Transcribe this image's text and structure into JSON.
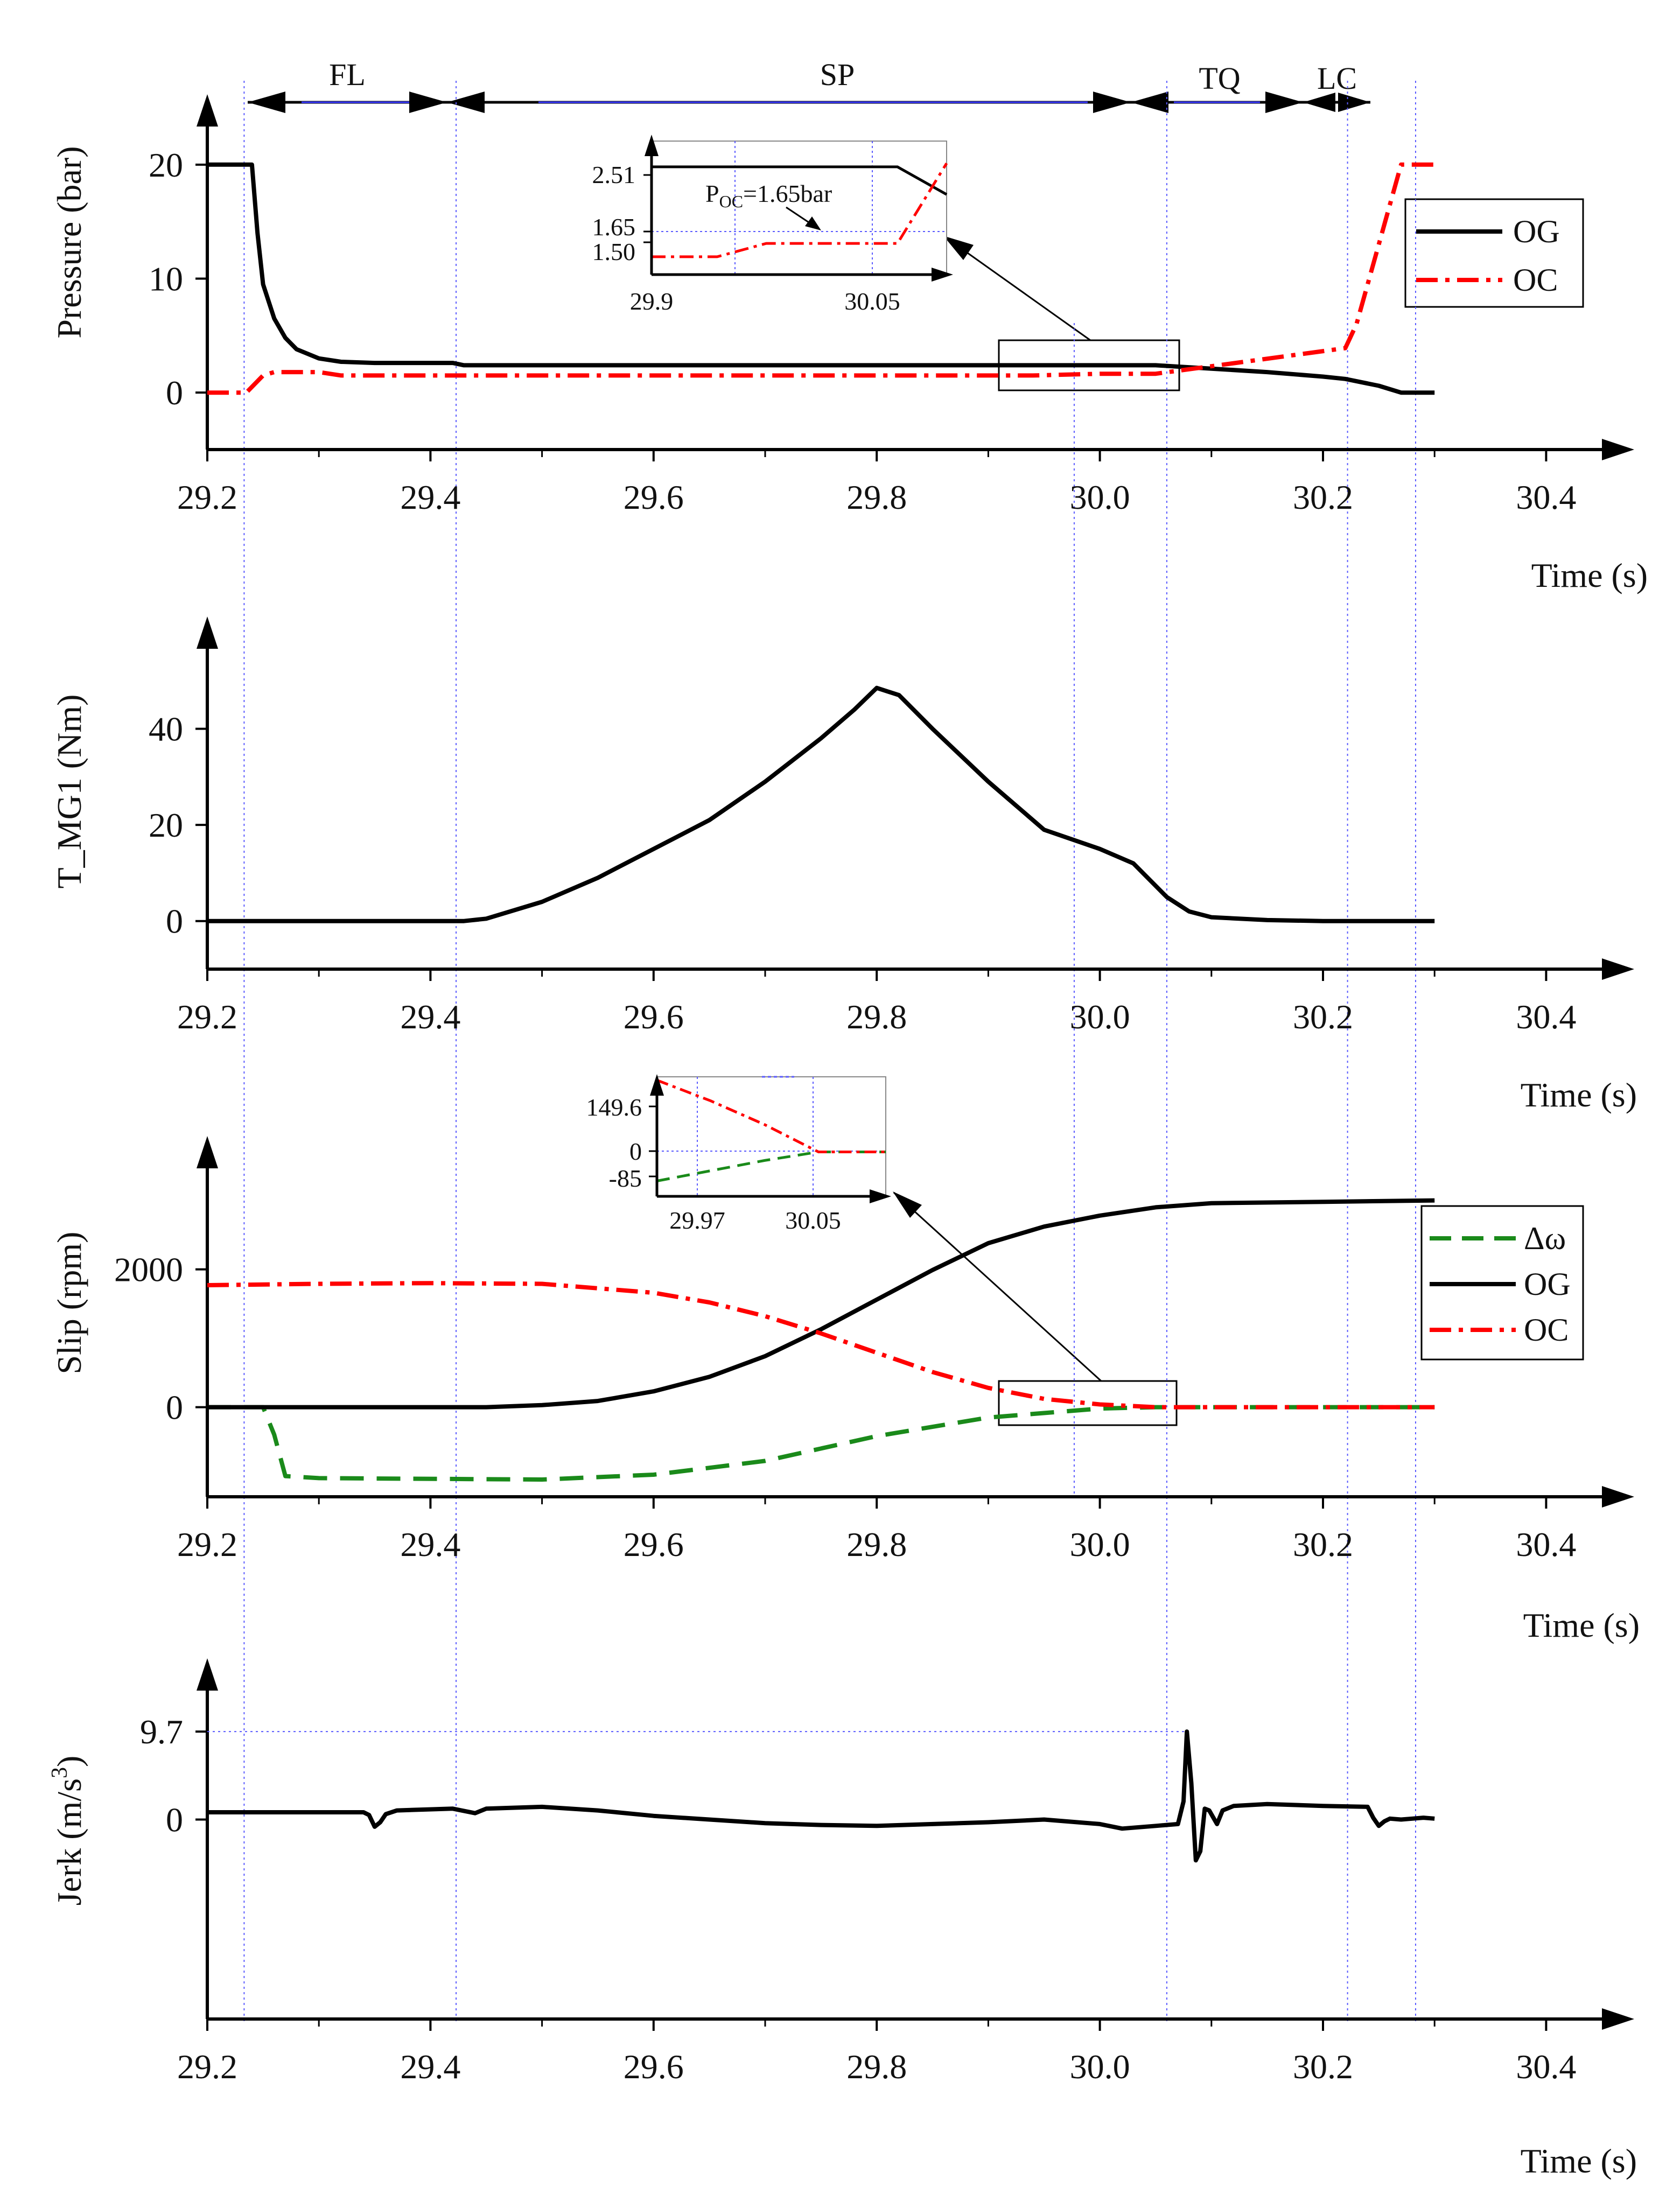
{
  "figure": {
    "background": "#ffffff"
  },
  "colors": {
    "og": "#000000",
    "oc": "#ff0000",
    "dw": "#1a8a1a",
    "guide": "#5a5aff",
    "axis": "#000000"
  },
  "chart_data": [
    {
      "id": "pressure",
      "type": "line",
      "ylabel": "Pressure (bar)",
      "xlabel": "Time (s)",
      "xlim": [
        29.2,
        30.45
      ],
      "ylim": [
        -5,
        25
      ],
      "xticks": [
        29.2,
        29.4,
        29.6,
        29.8,
        30.0,
        30.2,
        30.4
      ],
      "xtick_labels": [
        "29.2",
        "29.4",
        "29.6",
        "29.8",
        "30.0",
        "30.2",
        "30.4"
      ],
      "yticks": [
        0,
        10,
        20
      ],
      "ytick_labels": [
        "0",
        "10",
        "20"
      ],
      "legend": "right",
      "series": [
        {
          "name": "OG",
          "style": "solid",
          "color": "#000000",
          "x": [
            29.2,
            29.24,
            29.245,
            29.25,
            29.26,
            29.27,
            29.28,
            29.3,
            29.32,
            29.35,
            29.42,
            29.43,
            29.8,
            30.05,
            30.1,
            30.15,
            30.2,
            30.22,
            30.25,
            30.27,
            30.3
          ],
          "y": [
            20,
            20,
            14,
            9.5,
            6.5,
            4.8,
            3.8,
            3.0,
            2.7,
            2.6,
            2.6,
            2.4,
            2.4,
            2.4,
            2.1,
            1.8,
            1.4,
            1.2,
            0.6,
            0.0,
            0.0
          ]
        },
        {
          "name": "OC",
          "style": "dashdot",
          "color": "#ff0000",
          "x": [
            29.2,
            29.235,
            29.25,
            29.26,
            29.3,
            29.32,
            29.9,
            29.94,
            30.0,
            30.05,
            30.22,
            30.23,
            30.27,
            30.3
          ],
          "y": [
            0,
            0,
            1.5,
            1.8,
            1.8,
            1.5,
            1.5,
            1.5,
            1.65,
            1.65,
            3.9,
            6.0,
            20,
            20
          ]
        }
      ],
      "phase_labels": [
        "FL",
        "SP",
        "TQ",
        "LC"
      ],
      "inset": {
        "xlim": [
          29.9,
          30.08
        ],
        "ylim": [
          1.3,
          2.8
        ],
        "xtick_labels": [
          "29.9",
          "30.05"
        ],
        "ytick_labels": [
          "2.51",
          "1.65",
          "1.50"
        ],
        "annotation": {
          "prefix": "P",
          "subscript": "OC",
          "suffix": "=1.65bar"
        },
        "og": {
          "x": [
            29.9,
            30.05,
            30.08
          ],
          "y": [
            2.51,
            2.51,
            2.2
          ]
        },
        "oc": {
          "x": [
            29.9,
            29.94,
            29.97,
            30.0,
            30.05,
            30.08
          ],
          "y": [
            1.5,
            1.5,
            1.65,
            1.65,
            1.65,
            2.55
          ]
        }
      }
    },
    {
      "id": "torque",
      "type": "line",
      "ylabel": "T_MG1 (Nm)",
      "xlabel": "Time (s)",
      "xlim": [
        29.2,
        30.45
      ],
      "ylim": [
        -10,
        60
      ],
      "xticks": [
        29.2,
        29.4,
        29.6,
        29.8,
        30.0,
        30.2,
        30.4
      ],
      "xtick_labels": [
        "29.2",
        "29.4",
        "29.6",
        "29.8",
        "30.0",
        "30.2",
        "30.4"
      ],
      "yticks": [
        0,
        20,
        40
      ],
      "ytick_labels": [
        "0",
        "20",
        "40"
      ],
      "series": [
        {
          "name": "T_MG1",
          "style": "solid",
          "color": "#000000",
          "x": [
            29.2,
            29.43,
            29.45,
            29.5,
            29.55,
            29.6,
            29.65,
            29.7,
            29.75,
            29.78,
            29.8,
            29.82,
            29.85,
            29.9,
            29.95,
            30.0,
            30.03,
            30.06,
            30.08,
            30.1,
            30.15,
            30.2,
            30.3
          ],
          "y": [
            0,
            0,
            0.5,
            4,
            9,
            15,
            21,
            29,
            38,
            44,
            48.5,
            47,
            40,
            29,
            19,
            15,
            12,
            5,
            2,
            0.8,
            0.2,
            0,
            0
          ]
        }
      ]
    },
    {
      "id": "slip",
      "type": "line",
      "ylabel": "Slip (rpm)",
      "xlabel": "Time (s)",
      "xlim": [
        29.2,
        30.45
      ],
      "ylim": [
        -1300,
        3700
      ],
      "xticks": [
        29.2,
        29.4,
        29.6,
        29.8,
        30.0,
        30.2,
        30.4
      ],
      "xtick_labels": [
        "29.2",
        "29.4",
        "29.6",
        "29.8",
        "30.0",
        "30.2",
        "30.4"
      ],
      "yticks": [
        0,
        2000
      ],
      "ytick_labels": [
        "0",
        "2000"
      ],
      "legend": "right",
      "series": [
        {
          "name": "Δω",
          "style": "dashed",
          "color": "#1a8a1a",
          "x": [
            29.2,
            29.25,
            29.26,
            29.27,
            29.3,
            29.5,
            29.6,
            29.7,
            29.8,
            29.9,
            30.0,
            30.05,
            30.3
          ],
          "y": [
            0,
            0,
            -400,
            -1000,
            -1030,
            -1050,
            -980,
            -780,
            -420,
            -150,
            -20,
            0,
            0
          ]
        },
        {
          "name": "OG",
          "style": "solid",
          "color": "#000000",
          "x": [
            29.2,
            29.45,
            29.5,
            29.55,
            29.6,
            29.65,
            29.7,
            29.75,
            29.8,
            29.85,
            29.9,
            29.95,
            30.0,
            30.05,
            30.1,
            30.2,
            30.3
          ],
          "y": [
            0,
            0,
            30,
            90,
            230,
            440,
            740,
            1130,
            1560,
            1990,
            2380,
            2620,
            2780,
            2900,
            2960,
            2980,
            3000
          ]
        },
        {
          "name": "OC",
          "style": "dashdot",
          "color": "#ff0000",
          "x": [
            29.2,
            29.3,
            29.4,
            29.5,
            29.6,
            29.65,
            29.7,
            29.75,
            29.8,
            29.85,
            29.9,
            29.95,
            30.0,
            30.05,
            30.3
          ],
          "y": [
            1770,
            1790,
            1800,
            1790,
            1660,
            1520,
            1320,
            1070,
            790,
            510,
            280,
            120,
            40,
            0,
            0
          ]
        }
      ],
      "inset": {
        "xlim": [
          29.93,
          30.1
        ],
        "ylim": [
          -130,
          220
        ],
        "xtick_labels": [
          "29.97",
          "30.05"
        ],
        "ytick_labels": [
          "149.6",
          "0",
          "-85"
        ],
        "dw": {
          "x": [
            29.93,
            29.97,
            30.01,
            30.05,
            30.1
          ],
          "y": [
            -85,
            -55,
            -25,
            0,
            0
          ]
        },
        "oc": {
          "x": [
            29.93,
            29.97,
            30.01,
            30.05,
            30.1
          ],
          "y": [
            210,
            149.6,
            80,
            0,
            0
          ]
        }
      }
    },
    {
      "id": "jerk",
      "type": "line",
      "ylabel": "Jerk (m/s",
      "ylabel_sup": "3",
      "ylabel_close": ")",
      "xlabel": "Time (s)",
      "xlim": [
        29.2,
        30.45
      ],
      "ylim": [
        -22,
        16
      ],
      "xticks": [
        29.2,
        29.4,
        29.6,
        29.8,
        30.0,
        30.2,
        30.4
      ],
      "xtick_labels": [
        "29.2",
        "29.4",
        "29.6",
        "29.8",
        "30.0",
        "30.2",
        "30.4"
      ],
      "yticks": [
        0,
        9.7
      ],
      "ytick_labels": [
        "0",
        "9.7"
      ],
      "series": [
        {
          "name": "Jerk",
          "style": "solid",
          "color": "#000000",
          "x": [
            29.2,
            29.34,
            29.345,
            29.35,
            29.355,
            29.36,
            29.37,
            29.42,
            29.44,
            29.45,
            29.5,
            29.55,
            29.6,
            29.65,
            29.7,
            29.75,
            29.8,
            29.85,
            29.9,
            29.95,
            30.0,
            30.02,
            30.05,
            30.07,
            30.075,
            30.078,
            30.082,
            30.086,
            30.09,
            30.094,
            30.098,
            30.105,
            30.11,
            30.12,
            30.15,
            30.2,
            30.24,
            30.245,
            30.25,
            30.255,
            30.26,
            30.27,
            30.28,
            30.29,
            30.3
          ],
          "y": [
            0.8,
            0.8,
            0.5,
            -0.8,
            -0.3,
            0.6,
            1.0,
            1.2,
            0.7,
            1.2,
            1.4,
            1.0,
            0.4,
            0.0,
            -0.4,
            -0.6,
            -0.7,
            -0.5,
            -0.3,
            0.0,
            -0.5,
            -1.0,
            -0.7,
            -0.5,
            2.0,
            9.7,
            4.0,
            -4.5,
            -3.5,
            1.2,
            1.0,
            -0.5,
            1.0,
            1.5,
            1.7,
            1.5,
            1.4,
            0.2,
            -0.7,
            -0.2,
            0.1,
            0.0,
            0.1,
            0.2,
            0.1
          ]
        }
      ]
    }
  ]
}
